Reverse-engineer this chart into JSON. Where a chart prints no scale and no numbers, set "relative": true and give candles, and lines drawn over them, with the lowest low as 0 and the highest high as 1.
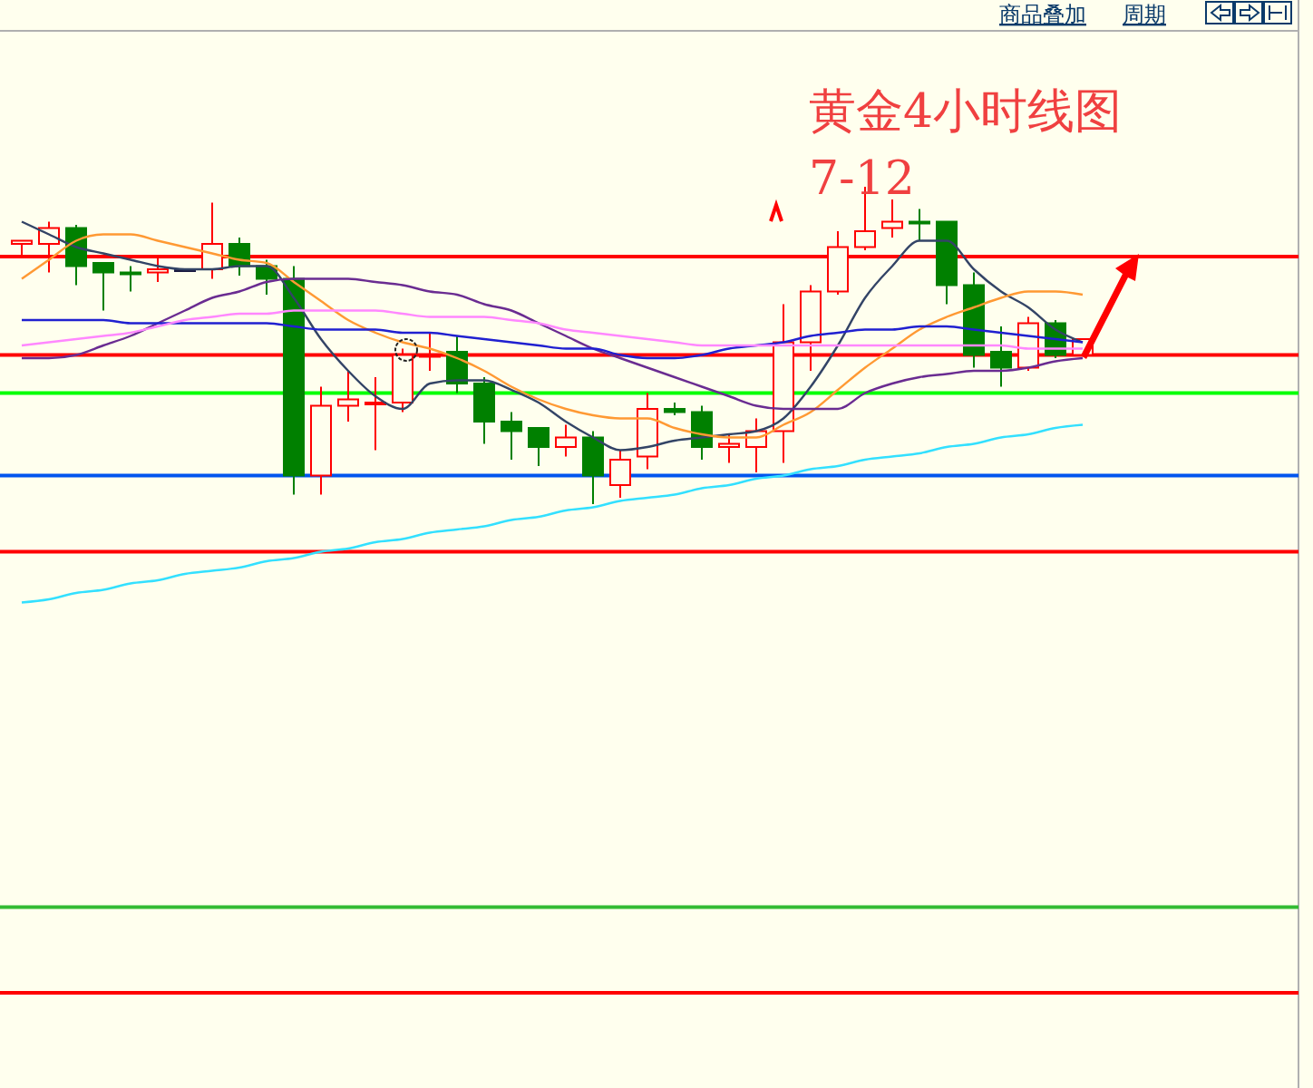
{
  "chart_data": {
    "type": "candlestick",
    "relative": true,
    "title": "黄金4小时线图",
    "subtitle": "7-12",
    "annotations": [
      "商品叠加",
      "周期"
    ],
    "categories": [
      null,
      null,
      null,
      null,
      null,
      null,
      null,
      null,
      null,
      null,
      null,
      null,
      null,
      null,
      null,
      null,
      null,
      null,
      null,
      null,
      null,
      null,
      null,
      null,
      null,
      null,
      null,
      null,
      null,
      null,
      null,
      null,
      null,
      null,
      null,
      null,
      null,
      null,
      null,
      null
    ],
    "ohlc": [
      [
        0.82,
        0.83,
        0.78,
        0.83
      ],
      [
        0.82,
        0.89,
        0.73,
        0.87
      ],
      [
        0.87,
        0.88,
        0.69,
        0.75
      ],
      [
        0.76,
        0.76,
        0.61,
        0.73
      ],
      [
        0.73,
        0.75,
        0.67,
        0.73
      ],
      [
        0.73,
        0.78,
        0.7,
        0.74
      ],
      [
        0.74,
        0.74,
        0.74,
        0.74
      ],
      [
        0.74,
        0.95,
        0.71,
        0.82
      ],
      [
        0.82,
        0.84,
        0.72,
        0.75
      ],
      [
        0.75,
        0.77,
        0.66,
        0.71
      ],
      [
        0.71,
        0.75,
        0.03,
        0.09
      ],
      [
        0.09,
        0.37,
        0.03,
        0.31
      ],
      [
        0.31,
        0.42,
        0.26,
        0.33
      ],
      [
        0.32,
        0.4,
        0.17,
        0.32
      ],
      [
        0.32,
        0.49,
        0.29,
        0.47
      ],
      [
        0.47,
        0.54,
        0.42,
        0.47
      ],
      [
        0.48,
        0.53,
        0.35,
        0.38
      ],
      [
        0.38,
        0.4,
        0.19,
        0.26
      ],
      [
        0.26,
        0.29,
        0.14,
        0.23
      ],
      [
        0.24,
        0.24,
        0.12,
        0.18
      ],
      [
        0.18,
        0.25,
        0.15,
        0.21
      ],
      [
        0.21,
        0.23,
        0,
        0.09
      ],
      [
        0.06,
        0.17,
        0.02,
        0.14
      ],
      [
        0.15,
        0.35,
        0.11,
        0.3
      ],
      [
        0.3,
        0.32,
        0.28,
        0.29
      ],
      [
        0.29,
        0.31,
        0.14,
        0.18
      ],
      [
        0.18,
        0.22,
        0.13,
        0.19
      ],
      [
        0.18,
        0.27,
        0.1,
        0.23
      ],
      [
        0.23,
        0.63,
        0.13,
        0.51
      ],
      [
        0.51,
        0.69,
        0.42,
        0.67
      ],
      [
        0.67,
        0.86,
        0.66,
        0.81
      ],
      [
        0.81,
        1,
        0.8,
        0.86
      ],
      [
        0.87,
        0.96,
        0.84,
        0.89
      ],
      [
        0.89,
        0.93,
        0.83,
        0.89
      ],
      [
        0.89,
        0.89,
        0.63,
        0.69
      ],
      [
        0.69,
        0.73,
        0.43,
        0.47
      ],
      [
        0.48,
        0.56,
        0.37,
        0.43
      ],
      [
        0.43,
        0.59,
        0.42,
        0.57
      ],
      [
        0.57,
        0.58,
        0.46,
        0.47
      ],
      [
        0.47,
        0.52,
        0.47,
        0.52
      ]
    ],
    "colors": [
      "#ff0000",
      "#ff0000",
      "#008000",
      "#008000",
      "#008000",
      "#ff0000",
      "#1a1a40",
      "#ff0000",
      "#008000",
      "#008000",
      "#008000",
      "#ff0000",
      "#ff0000",
      "#ff0000",
      "#ff0000",
      "#ff0000",
      "#008000",
      "#008000",
      "#008000",
      "#008000",
      "#ff0000",
      "#008000",
      "#ff0000",
      "#ff0000",
      "#008000",
      "#008000",
      "#ff0000",
      "#ff0000",
      "#ff0000",
      "#ff0000",
      "#ff0000",
      "#ff0000",
      "#ff0000",
      "#008000",
      "#008000",
      "#008000",
      "#008000",
      "#ff0000",
      "#008000",
      "#ff0000"
    ],
    "series": [
      {
        "type": "line",
        "color": "#334466",
        "values": [
          0.89,
          0.85,
          0.81,
          0.79,
          0.77,
          0.75,
          0.74,
          0.74,
          0.75,
          0.75,
          0.65,
          0.52,
          0.42,
          0.34,
          0.3,
          0.38,
          0.39,
          0.39,
          0.36,
          0.32,
          0.26,
          0.21,
          0.17,
          0.18,
          0.2,
          0.21,
          0.22,
          0.23,
          0.27,
          0.37,
          0.5,
          0.65,
          0.75,
          0.83,
          0.83,
          0.74,
          0.67,
          0.62,
          0.55,
          0.51
        ]
      },
      {
        "type": "line",
        "color": "#ff9933",
        "values": [
          0.71,
          0.77,
          0.83,
          0.85,
          0.85,
          0.83,
          0.81,
          0.79,
          0.77,
          0.76,
          0.7,
          0.64,
          0.58,
          0.54,
          0.51,
          0.49,
          0.46,
          0.42,
          0.37,
          0.33,
          0.3,
          0.28,
          0.27,
          0.27,
          0.24,
          0.22,
          0.21,
          0.21,
          0.25,
          0.29,
          0.36,
          0.43,
          0.49,
          0.55,
          0.59,
          0.62,
          0.65,
          0.67,
          0.67,
          0.66
        ]
      },
      {
        "type": "line",
        "color": "#6a2c91",
        "values": [
          0.46,
          0.46,
          0.47,
          0.5,
          0.53,
          0.57,
          0.61,
          0.65,
          0.67,
          0.7,
          0.71,
          0.71,
          0.71,
          0.7,
          0.69,
          0.67,
          0.66,
          0.63,
          0.61,
          0.57,
          0.53,
          0.49,
          0.46,
          0.43,
          0.4,
          0.37,
          0.34,
          0.31,
          0.3,
          0.3,
          0.3,
          0.35,
          0.38,
          0.4,
          0.41,
          0.42,
          0.42,
          0.43,
          0.45,
          0.46
        ]
      },
      {
        "type": "line",
        "color": "#2020d0",
        "values": [
          0.58,
          0.58,
          0.58,
          0.58,
          0.57,
          0.57,
          0.57,
          0.57,
          0.57,
          0.57,
          0.56,
          0.55,
          0.55,
          0.55,
          0.54,
          0.54,
          0.53,
          0.52,
          0.51,
          0.5,
          0.49,
          0.49,
          0.47,
          0.46,
          0.46,
          0.47,
          0.49,
          0.5,
          0.51,
          0.53,
          0.54,
          0.55,
          0.55,
          0.56,
          0.56,
          0.55,
          0.54,
          0.53,
          0.52,
          0.51
        ]
      },
      {
        "type": "line",
        "color": "#ff88ff",
        "values": [
          0.5,
          0.51,
          0.52,
          0.53,
          0.54,
          0.56,
          0.58,
          0.59,
          0.6,
          0.6,
          0.61,
          0.61,
          0.61,
          0.61,
          0.6,
          0.59,
          0.59,
          0.59,
          0.58,
          0.57,
          0.55,
          0.54,
          0.53,
          0.52,
          0.51,
          0.5,
          0.5,
          0.5,
          0.5,
          0.5,
          0.5,
          0.5,
          0.5,
          0.5,
          0.5,
          0.5,
          0.5,
          0.49,
          0.49,
          0.49
        ]
      },
      {
        "type": "line",
        "color": "#33e0ff",
        "values": [
          -0.31,
          -0.3,
          -0.28,
          -0.27,
          -0.25,
          -0.24,
          -0.22,
          -0.21,
          -0.2,
          -0.18,
          -0.17,
          -0.15,
          -0.14,
          -0.12,
          -0.11,
          -0.09,
          -0.08,
          -0.07,
          -0.05,
          -0.04,
          -0.02,
          -0.01,
          0.01,
          0.02,
          0.03,
          0.05,
          0.06,
          0.08,
          0.09,
          0.11,
          0.12,
          0.14,
          0.15,
          0.16,
          0.18,
          0.19,
          0.21,
          0.22,
          0.24,
          0.25
        ]
      }
    ],
    "ref_lines": [
      {
        "axis": "y",
        "value": 0.78,
        "color": "#ff0000"
      },
      {
        "axis": "y",
        "value": 0.47,
        "color": "#ff0000"
      },
      {
        "axis": "y",
        "value": 0.35,
        "color": "#00ff00"
      },
      {
        "axis": "y",
        "value": 0.09,
        "color": "#0055ee"
      },
      {
        "axis": "y",
        "value": -0.15,
        "color": "#ff0000"
      },
      {
        "axis": "y",
        "value": -1.27,
        "color": "#33bb33"
      },
      {
        "axis": "y",
        "value": -1.54,
        "color": "#ff0000"
      }
    ]
  }
}
